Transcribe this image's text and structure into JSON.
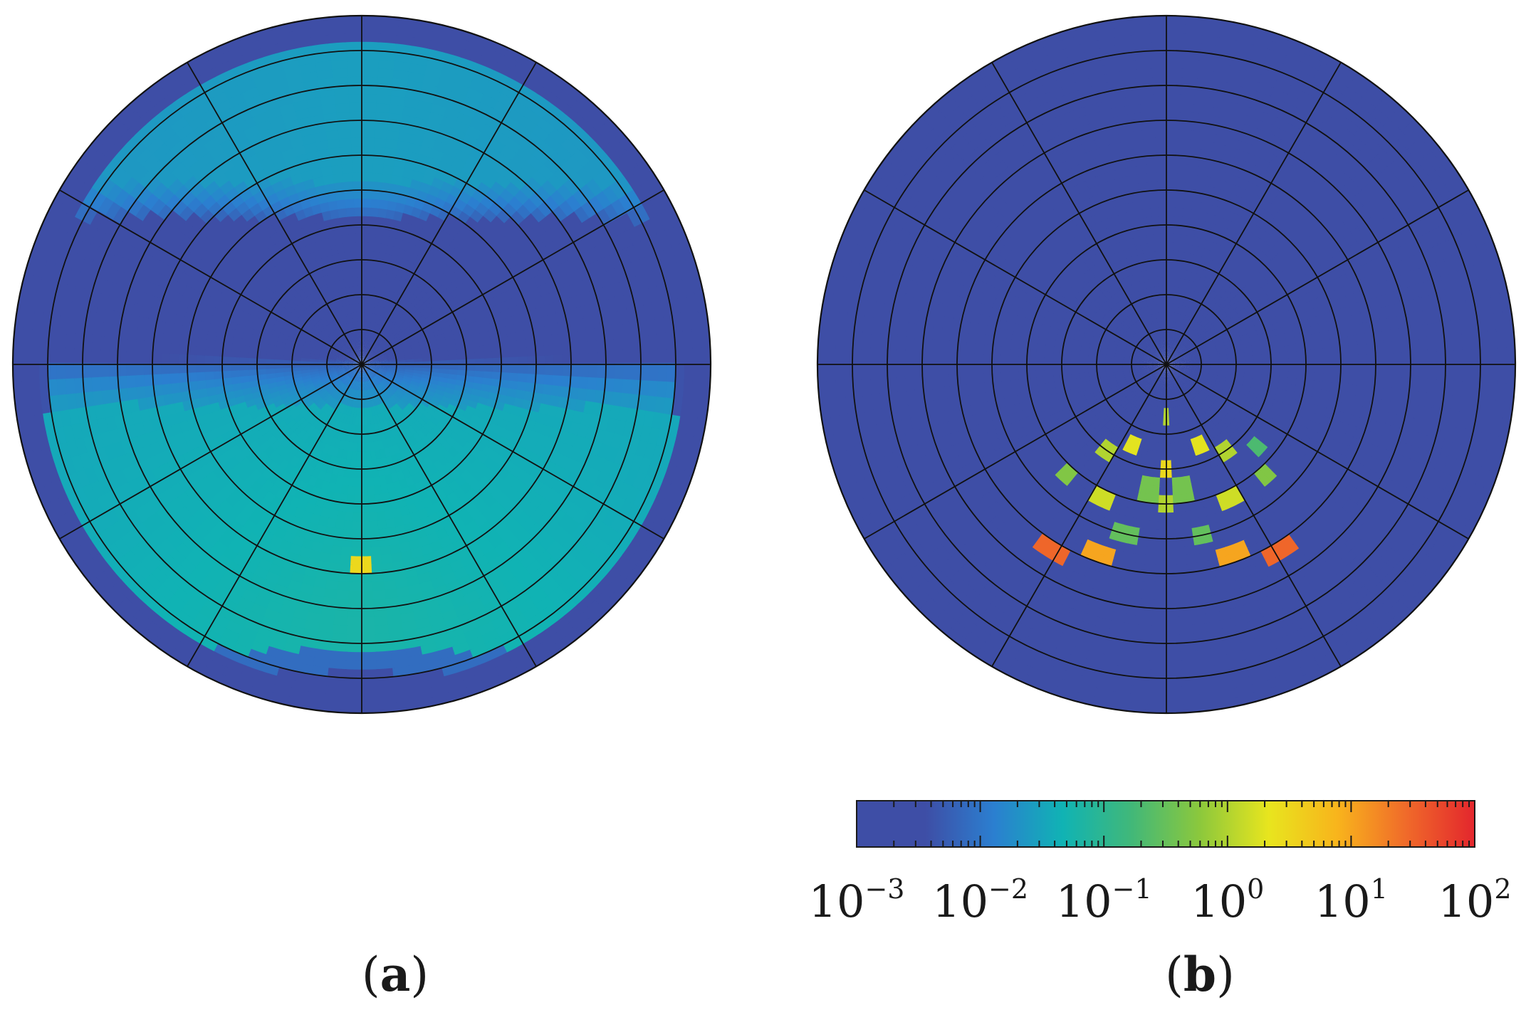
{
  "chart_data": [
    {
      "type": "heatmap",
      "projection": "polar",
      "panel_label": "a",
      "radial_rings": 10,
      "angular_spokes": 12,
      "colorscale": "log",
      "colormap": "parula",
      "pattern": "dark-blue center band with lighter teal bands above and green bands below",
      "bands": [
        {
          "region": "upper",
          "r_range": [
            0.55,
            0.93
          ],
          "value": 0.02
        },
        {
          "region": "center",
          "r_range": [
            0.0,
            0.55
          ],
          "value": 0.002
        },
        {
          "region": "lower",
          "r_range": [
            0.1,
            0.82
          ],
          "value": 0.05
        },
        {
          "region": "outer-rim",
          "r_range": [
            0.93,
            1.0
          ],
          "value": 0.002
        }
      ],
      "hotspots": [
        {
          "theta_deg": 270,
          "r": 0.58,
          "value": 3
        }
      ]
    },
    {
      "type": "heatmap",
      "projection": "polar",
      "panel_label": "b",
      "radial_rings": 10,
      "angular_spokes": 12,
      "colorscale": "log",
      "colormap": "parula",
      "background_value": 0.002,
      "hotspots": [
        {
          "theta_deg": 238,
          "r": 0.62,
          "value": 30
        },
        {
          "theta_deg": 250,
          "r": 0.58,
          "value": 10
        },
        {
          "theta_deg": 258,
          "r": 0.5,
          "value": 0.3
        },
        {
          "theta_deg": 235,
          "r": 0.3,
          "value": 1
        },
        {
          "theta_deg": 248,
          "r": 0.25,
          "value": 2
        },
        {
          "theta_deg": 228,
          "r": 0.42,
          "value": 0.5
        },
        {
          "theta_deg": 245,
          "r": 0.42,
          "value": 1.5
        },
        {
          "theta_deg": 262,
          "r": 0.36,
          "value": 0.4
        },
        {
          "theta_deg": 270,
          "r": 0.15,
          "value": 1
        },
        {
          "theta_deg": 270,
          "r": 0.3,
          "value": 3
        },
        {
          "theta_deg": 270,
          "r": 0.4,
          "value": 1
        },
        {
          "theta_deg": 302,
          "r": 0.62,
          "value": 30
        },
        {
          "theta_deg": 290,
          "r": 0.58,
          "value": 10
        },
        {
          "theta_deg": 282,
          "r": 0.5,
          "value": 0.3
        },
        {
          "theta_deg": 305,
          "r": 0.3,
          "value": 1
        },
        {
          "theta_deg": 292,
          "r": 0.25,
          "value": 2
        },
        {
          "theta_deg": 312,
          "r": 0.42,
          "value": 0.5
        },
        {
          "theta_deg": 296,
          "r": 0.42,
          "value": 1.5
        },
        {
          "theta_deg": 278,
          "r": 0.36,
          "value": 0.4
        },
        {
          "theta_deg": 318,
          "r": 0.35,
          "value": 0.2
        }
      ]
    }
  ],
  "colorbar": {
    "scale": "log",
    "range": [
      0.001,
      100
    ],
    "ticks": [
      {
        "value": 0.001,
        "base": "10",
        "exponent": "−3"
      },
      {
        "value": 0.01,
        "base": "10",
        "exponent": "−2"
      },
      {
        "value": 0.1,
        "base": "10",
        "exponent": "−1"
      },
      {
        "value": 1,
        "base": "10",
        "exponent": "0"
      },
      {
        "value": 10,
        "base": "10",
        "exponent": "1"
      },
      {
        "value": 100,
        "base": "10",
        "exponent": "2"
      }
    ],
    "colors": [
      "#3e4ea6",
      "#3e4ea6",
      "#2b7fd0",
      "#10b3b4",
      "#41b879",
      "#8cc83c",
      "#e8e51e",
      "#f8b41c",
      "#f06a2a",
      "#e3262d"
    ]
  },
  "panel_labels": [
    {
      "open": "(",
      "letter": "a",
      "close": ")"
    },
    {
      "open": "(",
      "letter": "b",
      "close": ")"
    }
  ]
}
